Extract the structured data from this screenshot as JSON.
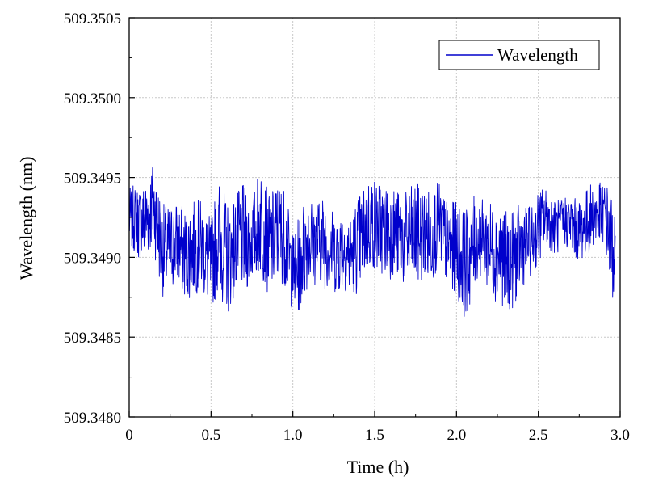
{
  "chart_data": {
    "type": "line",
    "xlabel": "Time (h)",
    "ylabel": "Wavelength (nm)",
    "xlim": [
      0,
      3.0
    ],
    "ylim": [
      509.348,
      509.3505
    ],
    "x_ticks": [
      "0",
      "0.5",
      "1.0",
      "1.5",
      "2.0",
      "2.5",
      "3.0"
    ],
    "x_tick_values": [
      0,
      0.5,
      1.0,
      1.5,
      2.0,
      2.5,
      3.0
    ],
    "y_ticks": [
      "509.3480",
      "509.3485",
      "509.3490",
      "509.3495",
      "509.3500",
      "509.3505"
    ],
    "y_tick_values": [
      509.348,
      509.3485,
      509.349,
      509.3495,
      509.35,
      509.3505
    ],
    "grid": true,
    "legend_position": "top-right",
    "series": [
      {
        "name": "Wavelength",
        "color": "#0000cc",
        "x_range": [
          0,
          2.97
        ],
        "envelope": {
          "x": [
            0.0,
            0.05,
            0.1,
            0.15,
            0.2,
            0.25,
            0.3,
            0.35,
            0.4,
            0.45,
            0.5,
            0.55,
            0.6,
            0.65,
            0.7,
            0.75,
            0.8,
            0.85,
            0.9,
            0.95,
            1.0,
            1.05,
            1.1,
            1.15,
            1.2,
            1.25,
            1.3,
            1.35,
            1.4,
            1.45,
            1.5,
            1.55,
            1.6,
            1.65,
            1.7,
            1.75,
            1.8,
            1.85,
            1.9,
            1.95,
            2.0,
            2.05,
            2.1,
            2.15,
            2.2,
            2.25,
            2.3,
            2.35,
            2.4,
            2.45,
            2.5,
            2.55,
            2.6,
            2.65,
            2.7,
            2.75,
            2.8,
            2.85,
            2.9,
            2.93,
            2.95,
            2.97
          ],
          "max": [
            509.34945,
            509.34948,
            509.34952,
            509.34962,
            509.34945,
            509.3494,
            509.34942,
            509.3494,
            509.34935,
            509.34938,
            509.3493,
            509.34955,
            509.3495,
            509.34945,
            509.3495,
            509.3494,
            509.34958,
            509.34945,
            509.34957,
            509.3495,
            509.34925,
            509.34935,
            509.34945,
            509.3494,
            509.34942,
            509.34935,
            509.34942,
            509.3493,
            509.34948,
            509.3495,
            509.34952,
            509.34954,
            509.3495,
            509.3495,
            509.34952,
            509.34948,
            509.3495,
            509.34945,
            509.34948,
            509.34944,
            509.34942,
            509.3494,
            509.34945,
            509.34935,
            509.34942,
            509.34938,
            509.34935,
            509.34942,
            509.3494,
            509.34935,
            509.34945,
            509.34943,
            509.3494,
            509.34942,
            509.34944,
            509.34943,
            509.34945,
            509.3495,
            509.3495,
            509.34948,
            509.3494,
            509.3493
          ],
          "min": [
            509.349,
            509.34895,
            509.3489,
            509.34895,
            509.34875,
            509.34875,
            509.3488,
            509.3487,
            509.34865,
            509.3487,
            509.3486,
            509.3487,
            509.34865,
            509.34875,
            509.3487,
            509.3488,
            509.34875,
            509.3487,
            509.3488,
            509.34878,
            509.34865,
            509.3486,
            509.3487,
            509.3488,
            509.3487,
            509.34875,
            509.3488,
            509.3487,
            509.34875,
            509.3488,
            509.3488,
            509.34885,
            509.3488,
            509.34885,
            509.3488,
            509.3487,
            509.3488,
            509.34875,
            509.34885,
            509.3488,
            509.3487,
            509.3486,
            509.3487,
            509.3488,
            509.3487,
            509.34865,
            509.3486,
            509.3487,
            509.34875,
            509.34885,
            509.3489,
            509.349,
            509.34898,
            509.34905,
            509.349,
            509.34898,
            509.34895,
            509.349,
            509.34905,
            509.3488,
            509.34855,
            509.3488
          ]
        }
      }
    ]
  }
}
